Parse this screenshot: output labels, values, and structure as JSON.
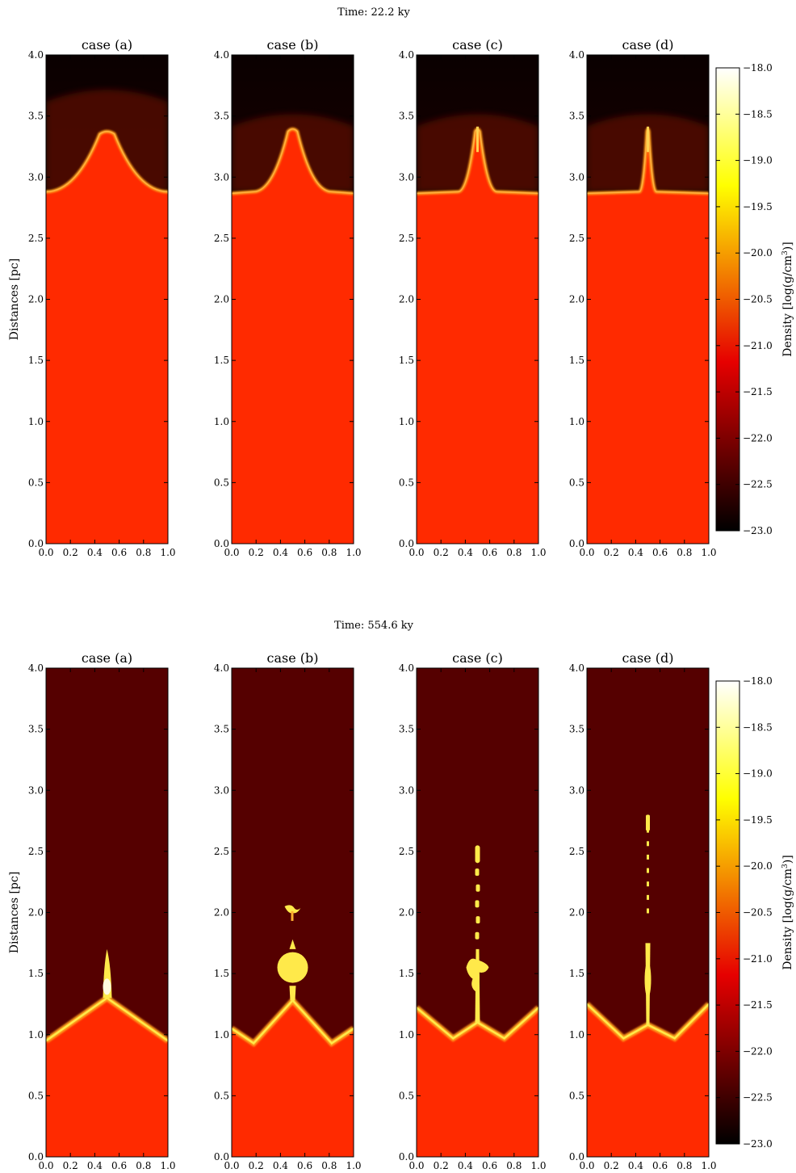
{
  "chart_data": [
    {
      "type": "heatmap",
      "title": "Time: 22.2 ky",
      "ylabel": "Distances [pc]",
      "xlim": [
        0.0,
        1.0
      ],
      "ylim": [
        0.0,
        4.0
      ],
      "xticks": [
        "0.0",
        "0.2",
        "0.4",
        "0.6",
        "0.8",
        "1.0"
      ],
      "yticks": [
        "0.0",
        "0.5",
        "1.0",
        "1.5",
        "2.0",
        "2.5",
        "3.0",
        "3.5",
        "4.0"
      ],
      "panels": [
        {
          "title": "case (a)",
          "front_base_y": 2.88,
          "front_peak_y": 3.38,
          "front_halfwidth_x": 0.5,
          "shape": "broad-arch"
        },
        {
          "title": "case (b)",
          "front_base_y": 2.88,
          "front_peak_y": 3.4,
          "front_halfwidth_x": 0.32,
          "shape": "arch"
        },
        {
          "title": "case (c)",
          "front_base_y": 2.88,
          "front_peak_y": 3.4,
          "front_halfwidth_x": 0.16,
          "shape": "narrow-arch"
        },
        {
          "title": "case (d)",
          "front_base_y": 2.88,
          "front_peak_y": 3.4,
          "front_halfwidth_x": 0.07,
          "shape": "spike"
        }
      ],
      "colorbar": {
        "label": "Density [log(g/cm",
        "label_sup": "3",
        "label_end": ")]",
        "range": [
          -23.0,
          -18.0
        ],
        "ticks": [
          "−18.0",
          "−18.5",
          "−19.0",
          "−19.5",
          "−20.0",
          "−20.5",
          "−21.0",
          "−21.5",
          "−22.0",
          "−22.5",
          "−23.0"
        ],
        "colormap": "hot"
      }
    },
    {
      "type": "heatmap",
      "title": "Time: 554.6 ky",
      "ylabel": "Distances [pc]",
      "xlim": [
        0.0,
        1.0
      ],
      "ylim": [
        0.0,
        4.0
      ],
      "xticks": [
        "0.0",
        "0.2",
        "0.4",
        "0.6",
        "0.8",
        "1.0"
      ],
      "yticks": [
        "0.0",
        "0.5",
        "1.0",
        "1.5",
        "2.0",
        "2.5",
        "3.0",
        "3.5",
        "4.0"
      ],
      "panels": [
        {
          "title": "case (a)",
          "front_edge_y": 0.95,
          "front_peak_y": 1.3,
          "column_top_y": 1.7,
          "shape": "single-apex"
        },
        {
          "title": "case (b)",
          "front_edge_y": 1.05,
          "front_peak_y": 1.28,
          "column_top_y": 2.05,
          "shape": "blob-column"
        },
        {
          "title": "case (c)",
          "front_edge_y": 1.22,
          "front_peak_y": 1.1,
          "column_top_y": 2.55,
          "shape": "thin-column"
        },
        {
          "title": "case (d)",
          "front_edge_y": 1.25,
          "front_peak_y": 1.08,
          "column_top_y": 2.8,
          "shape": "thin-spike"
        }
      ],
      "colorbar": {
        "label": "Density [log(g/cm",
        "label_sup": "3",
        "label_end": ")]",
        "range": [
          -23.0,
          -18.0
        ],
        "ticks": [
          "−18.0",
          "−18.5",
          "−19.0",
          "−19.5",
          "−20.0",
          "−20.5",
          "−21.0",
          "−21.5",
          "−22.0",
          "−22.5",
          "−23.0"
        ],
        "colormap": "hot"
      }
    }
  ],
  "colors": {
    "cloud": "#ff2a00",
    "ambient_dark": "#550000",
    "shell": "#ffa11a",
    "dense": "#ffe94a"
  }
}
